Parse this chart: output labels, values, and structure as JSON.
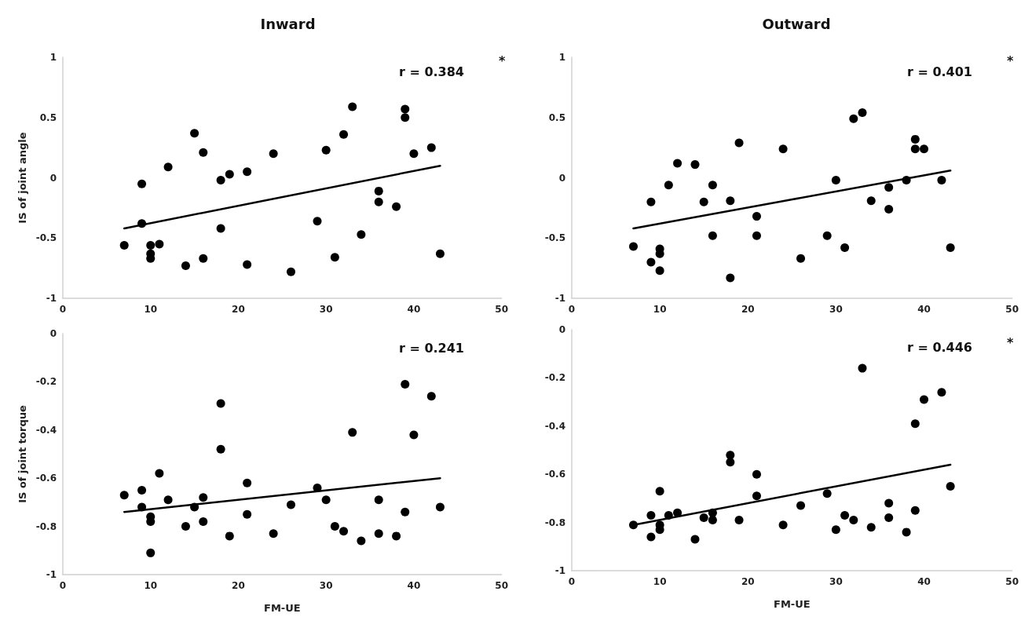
{
  "chart_data": [
    {
      "type": "scatter",
      "title": "Inward",
      "ylabel": "IS of joint angle",
      "xlim": [
        0,
        50
      ],
      "xticks": [
        0,
        10,
        20,
        30,
        40,
        50
      ],
      "ylim": [
        -1,
        1
      ],
      "yticks": [
        -1,
        -0.5,
        0,
        0.5,
        1
      ],
      "grid": false,
      "marker": "circle",
      "annotations": [
        "r = 0.384",
        "*"
      ],
      "series": [
        {
          "type": "scatter",
          "color": "#000000",
          "x": [
            7,
            9,
            9,
            10,
            10,
            10,
            11,
            12,
            14,
            15,
            16,
            16,
            18,
            18,
            19,
            21,
            21,
            24,
            26,
            29,
            30,
            31,
            32,
            33,
            34,
            36,
            36,
            38,
            39,
            39,
            40,
            42,
            43
          ],
          "values": [
            -0.56,
            -0.05,
            -0.38,
            -0.56,
            -0.63,
            -0.67,
            -0.55,
            0.09,
            -0.73,
            0.37,
            0.21,
            -0.67,
            -0.02,
            -0.42,
            0.03,
            0.05,
            -0.72,
            0.2,
            -0.78,
            -0.36,
            0.23,
            -0.66,
            0.36,
            0.59,
            -0.47,
            -0.11,
            -0.2,
            -0.24,
            0.57,
            0.5,
            0.2,
            0.25,
            -0.63
          ]
        },
        {
          "type": "line",
          "color": "#000000",
          "marker": "none",
          "line_style": "solid",
          "x": [
            7,
            43
          ],
          "values": [
            -0.42,
            0.1
          ]
        }
      ]
    },
    {
      "type": "scatter",
      "title": "Outward",
      "xlim": [
        0,
        50
      ],
      "xticks": [
        0,
        10,
        20,
        30,
        40,
        50
      ],
      "ylim": [
        -1,
        1
      ],
      "yticks": [
        -1,
        -0.5,
        0,
        0.5,
        1
      ],
      "grid": false,
      "marker": "circle",
      "annotations": [
        "r = 0.401",
        "*"
      ],
      "series": [
        {
          "type": "scatter",
          "color": "#000000",
          "x": [
            7,
            9,
            9,
            10,
            10,
            10,
            11,
            12,
            14,
            15,
            16,
            16,
            18,
            18,
            19,
            21,
            21,
            24,
            26,
            29,
            30,
            31,
            32,
            33,
            34,
            36,
            36,
            38,
            39,
            39,
            40,
            42,
            43
          ],
          "values": [
            -0.57,
            -0.2,
            -0.7,
            -0.59,
            -0.63,
            -0.77,
            -0.06,
            0.12,
            0.11,
            -0.2,
            -0.06,
            -0.48,
            -0.19,
            -0.83,
            0.29,
            -0.32,
            -0.48,
            0.24,
            -0.67,
            -0.48,
            -0.02,
            -0.58,
            0.49,
            0.54,
            -0.19,
            -0.08,
            -0.26,
            -0.02,
            0.32,
            0.24,
            0.24,
            -0.02,
            -0.58
          ]
        },
        {
          "type": "line",
          "color": "#000000",
          "marker": "none",
          "line_style": "solid",
          "x": [
            7,
            43
          ],
          "values": [
            -0.42,
            0.06
          ]
        }
      ]
    },
    {
      "type": "scatter",
      "xlabel": "FM-UE",
      "ylabel": "IS of joint torque",
      "xlim": [
        0,
        50
      ],
      "xticks": [
        0,
        10,
        20,
        30,
        40,
        50
      ],
      "ylim": [
        -1,
        0
      ],
      "yticks": [
        -1,
        -0.8,
        -0.6,
        -0.4,
        -0.2,
        0
      ],
      "grid": false,
      "marker": "circle",
      "annotations": [
        "r = 0.241"
      ],
      "series": [
        {
          "type": "scatter",
          "color": "#000000",
          "x": [
            7,
            9,
            9,
            10,
            10,
            10,
            11,
            12,
            14,
            15,
            16,
            16,
            18,
            18,
            19,
            21,
            21,
            24,
            26,
            29,
            30,
            31,
            32,
            33,
            34,
            36,
            36,
            38,
            39,
            39,
            40,
            42,
            43
          ],
          "values": [
            -0.67,
            -0.65,
            -0.72,
            -0.76,
            -0.78,
            -0.91,
            -0.58,
            -0.69,
            -0.8,
            -0.72,
            -0.68,
            -0.78,
            -0.29,
            -0.48,
            -0.84,
            -0.62,
            -0.75,
            -0.83,
            -0.71,
            -0.64,
            -0.69,
            -0.8,
            -0.82,
            -0.41,
            -0.86,
            -0.69,
            -0.83,
            -0.84,
            -0.21,
            -0.74,
            -0.42,
            -0.26,
            -0.72
          ]
        },
        {
          "type": "line",
          "color": "#000000",
          "marker": "none",
          "line_style": "solid",
          "x": [
            7,
            43
          ],
          "values": [
            -0.74,
            -0.6
          ]
        }
      ]
    },
    {
      "type": "scatter",
      "xlabel": "FM-UE",
      "xlim": [
        0,
        50
      ],
      "xticks": [
        0,
        10,
        20,
        30,
        40,
        50
      ],
      "ylim": [
        -1,
        0
      ],
      "yticks": [
        -1,
        -0.8,
        -0.6,
        -0.4,
        -0.2,
        0
      ],
      "grid": false,
      "marker": "circle",
      "annotations": [
        "r = 0.446",
        "*"
      ],
      "series": [
        {
          "type": "scatter",
          "color": "#000000",
          "x": [
            7,
            9,
            9,
            10,
            10,
            10,
            11,
            12,
            14,
            15,
            16,
            16,
            18,
            18,
            19,
            21,
            21,
            24,
            26,
            29,
            30,
            31,
            32,
            33,
            34,
            36,
            36,
            38,
            39,
            39,
            40,
            42,
            43
          ],
          "values": [
            -0.81,
            -0.77,
            -0.86,
            -0.67,
            -0.81,
            -0.83,
            -0.77,
            -0.76,
            -0.87,
            -0.78,
            -0.76,
            -0.79,
            -0.52,
            -0.55,
            -0.79,
            -0.6,
            -0.69,
            -0.81,
            -0.73,
            -0.68,
            -0.83,
            -0.77,
            -0.79,
            -0.16,
            -0.82,
            -0.72,
            -0.78,
            -0.84,
            -0.39,
            -0.75,
            -0.29,
            -0.26,
            -0.65
          ]
        },
        {
          "type": "line",
          "color": "#000000",
          "marker": "none",
          "line_style": "solid",
          "x": [
            7,
            43
          ],
          "values": [
            -0.81,
            -0.56
          ]
        }
      ]
    }
  ]
}
